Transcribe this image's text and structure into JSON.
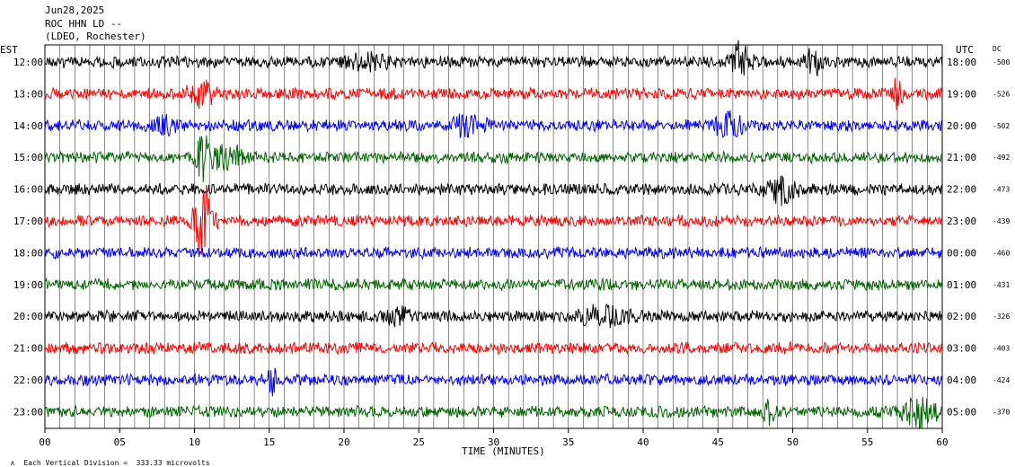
{
  "header": {
    "date": "Jun28,2025",
    "station": "ROC HHN LD --",
    "network": "(LDEO, Rochester)"
  },
  "left_tz": "EST",
  "right_tz": "UTC",
  "dc_label": "DC",
  "footer": {
    "scale_note": "Each Vertical Division =  333.33 microvolts"
  },
  "chart_data": {
    "type": "line",
    "title": "",
    "xlabel": "TIME (MINUTES)",
    "xlim": [
      0,
      60
    ],
    "x_ticks": [
      "00",
      "05",
      "10",
      "15",
      "20",
      "25",
      "30",
      "35",
      "40",
      "45",
      "50",
      "55",
      "60"
    ],
    "grid": "vertical lines every minute",
    "trace_colors": [
      "#000000",
      "#ff0000",
      "#0000ff",
      "#006400"
    ],
    "rows": [
      {
        "est": "12:00",
        "utc": "18:00",
        "dc": "-500",
        "color": "#000000"
      },
      {
        "est": "13:00",
        "utc": "19:00",
        "dc": "-526",
        "color": "#ff0000"
      },
      {
        "est": "14:00",
        "utc": "20:00",
        "dc": "-502",
        "color": "#0000ff"
      },
      {
        "est": "15:00",
        "utc": "21:00",
        "dc": "-492",
        "color": "#006400"
      },
      {
        "est": "16:00",
        "utc": "22:00",
        "dc": "-473",
        "color": "#000000"
      },
      {
        "est": "17:00",
        "utc": "23:00",
        "dc": "-439",
        "color": "#ff0000"
      },
      {
        "est": "18:00",
        "utc": "00:00",
        "dc": "-460",
        "color": "#0000ff"
      },
      {
        "est": "19:00",
        "utc": "01:00",
        "dc": "-431",
        "color": "#006400"
      },
      {
        "est": "20:00",
        "utc": "02:00",
        "dc": "-326",
        "color": "#000000"
      },
      {
        "est": "21:00",
        "utc": "03:00",
        "dc": "-403",
        "color": "#ff0000"
      },
      {
        "est": "22:00",
        "utc": "04:00",
        "dc": "-424",
        "color": "#0000ff"
      },
      {
        "est": "23:00",
        "utc": "05:00",
        "dc": "-370",
        "color": "#006400"
      }
    ]
  }
}
